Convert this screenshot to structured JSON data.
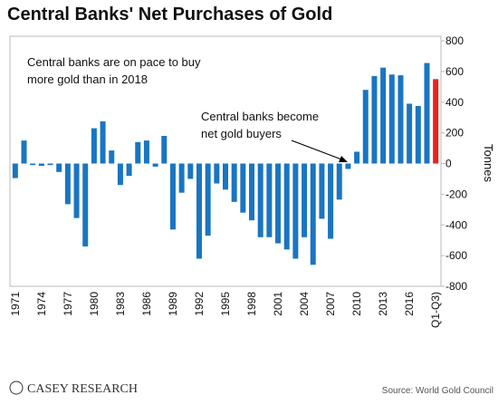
{
  "chart_data": {
    "type": "bar",
    "title": "Central Banks' Net Purchases of Gold",
    "annotations": [
      "Central banks are on pace to buy",
      "more gold than in 2018",
      "Central banks become",
      "net gold buyers"
    ],
    "y_label": "Tonnes",
    "source": "Source: World Gold Council",
    "logo": "CASEY RESEARCH",
    "categories": [
      "1971",
      null,
      null,
      "1974",
      null,
      null,
      "1977",
      null,
      null,
      "1980",
      null,
      null,
      "1983",
      null,
      null,
      "1986",
      null,
      null,
      "1989",
      null,
      null,
      "1992",
      null,
      null,
      "1995",
      null,
      null,
      "1998",
      null,
      null,
      "2001",
      null,
      null,
      "2004",
      null,
      null,
      "2007",
      null,
      null,
      "2010",
      null,
      null,
      "2013",
      null,
      null,
      "2016",
      null,
      null,
      "Q1-Q3)"
    ],
    "values": [
      -95,
      150,
      -10,
      -15,
      -10,
      -55,
      -265,
      -355,
      -540,
      230,
      275,
      85,
      -140,
      -80,
      140,
      150,
      -20,
      180,
      -430,
      -190,
      -100,
      -620,
      -470,
      -130,
      -170,
      -250,
      -320,
      -370,
      -480,
      -480,
      -520,
      -560,
      -620,
      -480,
      -660,
      -360,
      -490,
      -235,
      -35,
      77,
      480,
      570,
      625,
      580,
      575,
      390,
      375,
      655,
      550
    ],
    "color": "#1a75c2",
    "last_color": "#e8231d",
    "ylim": [
      -800,
      800
    ],
    "yticks": [
      -800,
      -600,
      -400,
      -200,
      0,
      200,
      400,
      600,
      800
    ]
  }
}
